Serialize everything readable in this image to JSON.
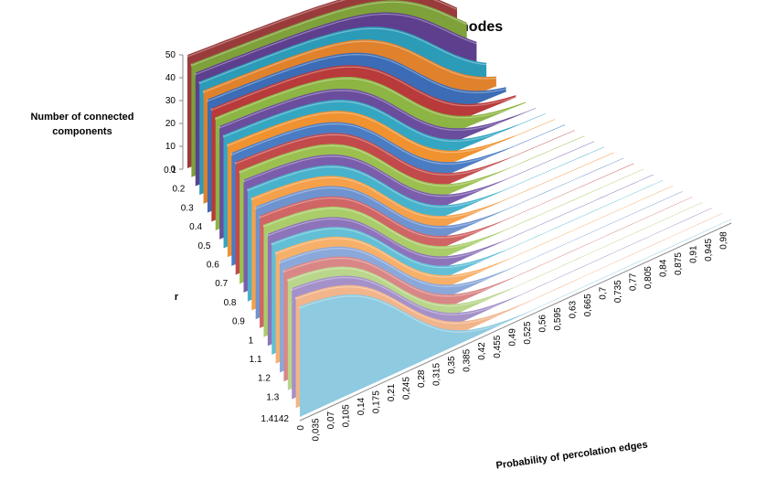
{
  "chart_data": {
    "type": "area",
    "subtype": "3d-surface-ribbons",
    "title": "Geometric graph with 50 nodes",
    "xlabel": "Probability of percolation edges",
    "ylabel": "Number of connected\ncomponents",
    "zlabel": "r",
    "z_ticks": [
      "0",
      "10",
      "20",
      "30",
      "40",
      "50"
    ],
    "ylim": [
      0,
      50
    ],
    "x_ticks": [
      "0",
      "0,035",
      "0,07",
      "0,105",
      "0,14",
      "0,175",
      "0,21",
      "0,245",
      "0,28",
      "0,315",
      "0,35",
      "0,385",
      "0,42",
      "0,455",
      "0,49",
      "0,525",
      "0,56",
      "0,595",
      "0,63",
      "0,665",
      "0,7",
      "0,735",
      "0,77",
      "0,805",
      "0,84",
      "0,875",
      "0,91",
      "0,945",
      "0,98"
    ],
    "r_ticks": [
      "0.1",
      "0.2",
      "0.3",
      "0.4",
      "0.5",
      "0.6",
      "0.7",
      "0.8",
      "0.9",
      "1",
      "1.1",
      "1.2",
      "1.3",
      "1.4142"
    ],
    "series": [
      {
        "r": 0.1,
        "threshold": 1.0,
        "color": "#9A3B3B"
      },
      {
        "r": 0.15,
        "threshold": 0.96,
        "color": "#7EA13A"
      },
      {
        "r": 0.2,
        "threshold": 0.9,
        "color": "#5E3F8E"
      },
      {
        "r": 0.25,
        "threshold": 0.82,
        "color": "#2B9BB8"
      },
      {
        "r": 0.3,
        "threshold": 0.76,
        "color": "#E0822B"
      },
      {
        "r": 0.35,
        "threshold": 0.7,
        "color": "#3B6CB5"
      },
      {
        "r": 0.4,
        "threshold": 0.65,
        "color": "#B83A3A"
      },
      {
        "r": 0.45,
        "threshold": 0.61,
        "color": "#8DB543"
      },
      {
        "r": 0.5,
        "threshold": 0.57,
        "color": "#6A4D9C"
      },
      {
        "r": 0.55,
        "threshold": 0.54,
        "color": "#35A6C2"
      },
      {
        "r": 0.6,
        "threshold": 0.51,
        "color": "#F0922F"
      },
      {
        "r": 0.65,
        "threshold": 0.48,
        "color": "#4A7CC4"
      },
      {
        "r": 0.7,
        "threshold": 0.455,
        "color": "#C24A4A"
      },
      {
        "r": 0.75,
        "threshold": 0.43,
        "color": "#9BC04F"
      },
      {
        "r": 0.8,
        "threshold": 0.41,
        "color": "#7A5DAB"
      },
      {
        "r": 0.85,
        "threshold": 0.39,
        "color": "#48B2CC"
      },
      {
        "r": 0.9,
        "threshold": 0.37,
        "color": "#F5A04A"
      },
      {
        "r": 0.95,
        "threshold": 0.355,
        "color": "#6E93CF"
      },
      {
        "r": 1.0,
        "threshold": 0.34,
        "color": "#CF6565"
      },
      {
        "r": 1.05,
        "threshold": 0.325,
        "color": "#AACD6A"
      },
      {
        "r": 1.1,
        "threshold": 0.31,
        "color": "#8D74BA"
      },
      {
        "r": 1.15,
        "threshold": 0.3,
        "color": "#62BFD6"
      },
      {
        "r": 1.2,
        "threshold": 0.29,
        "color": "#F7B06A"
      },
      {
        "r": 1.25,
        "threshold": 0.28,
        "color": "#8AA8DA"
      },
      {
        "r": 1.3,
        "threshold": 0.27,
        "color": "#D98686"
      },
      {
        "r": 1.35,
        "threshold": 0.26,
        "color": "#B9D68A"
      },
      {
        "r": 1.38,
        "threshold": 0.255,
        "color": "#A591C9"
      },
      {
        "r": 1.4,
        "threshold": 0.25,
        "color": "#F2B48A"
      },
      {
        "r": 1.4142,
        "threshold": 0.245,
        "color": "#8ECAE0"
      }
    ]
  }
}
